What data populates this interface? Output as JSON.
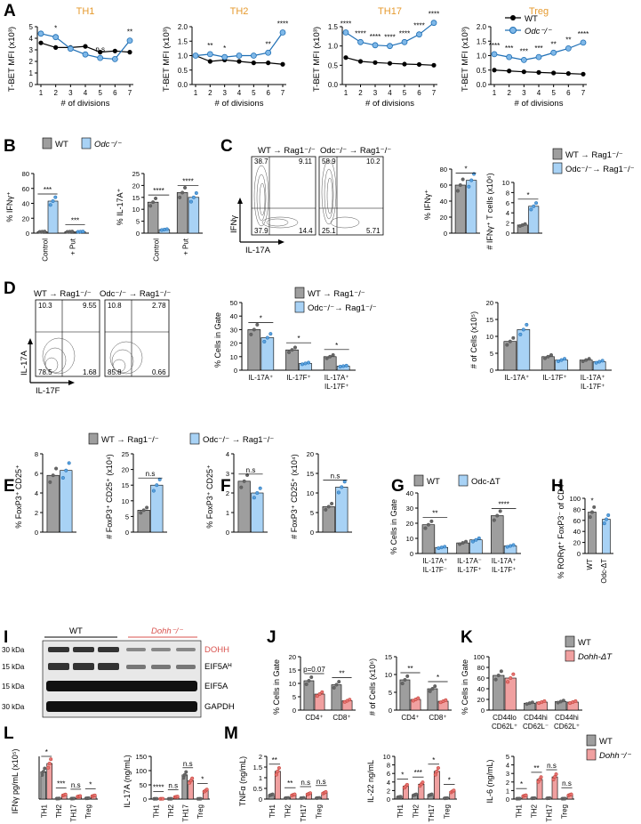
{
  "panels": {
    "A": {
      "letter": "A",
      "ylabel": "T-BET MFI (x10³)",
      "xlabel": "# of divisions",
      "legend": [
        "WT",
        "Odc⁻/⁻"
      ],
      "subpanels": [
        {
          "title": "TH1",
          "yticks": [
            "0",
            "1",
            "2",
            "3",
            "4",
            "5"
          ]
        },
        {
          "title": "TH2",
          "yticks": [
            "0.0",
            "0.5",
            "1.0",
            "1.5",
            "2.0"
          ]
        },
        {
          "title": "TH17",
          "yticks": [
            "0.0",
            "0.5",
            "1.0",
            "1.5"
          ]
        },
        {
          "title": "Treg",
          "yticks": [
            "0.0",
            "0.5",
            "1.0",
            "1.5",
            "2.0"
          ]
        }
      ]
    },
    "B": {
      "letter": "B",
      "legend": [
        "WT",
        "Odc⁻/⁻"
      ],
      "ylabels": [
        "% IFNγ⁺",
        "% IL-17A⁺"
      ],
      "groups": [
        "Control",
        "+ Put"
      ]
    },
    "C": {
      "letter": "C",
      "legend": [
        "WT → Rag1⁻/⁻",
        "Odc⁻/⁻→ Rag1⁻/⁻"
      ],
      "flow_titles": [
        "WT → Rag1⁻/⁻",
        "Odc⁻/⁻ → Rag1⁻/⁻"
      ],
      "quadrants": [
        [
          "38.7",
          "9.11",
          "37.9",
          "14.4"
        ],
        [
          "58.9",
          "10.2",
          "25.1",
          "5.71"
        ]
      ],
      "axes": [
        "IFNγ",
        "IL-17A"
      ],
      "ylabels": [
        "% IFNγ⁺",
        "# IFNγ⁺ T cells (x10⁶)"
      ]
    },
    "D": {
      "letter": "D",
      "legend": [
        "WT → Rag1⁻/⁻",
        "Odc⁻/⁻→ Rag1⁻/⁻"
      ],
      "flow_titles": [
        "WT → Rag1⁻/⁻",
        "Odc⁻/⁻ → Rag1⁻/⁻"
      ],
      "quadrants": [
        [
          "10.3",
          "9.55",
          "78.5",
          "1.68"
        ],
        [
          "10.8",
          "2.78",
          "85.8",
          "0.66"
        ]
      ],
      "axes": [
        "IL-17A",
        "IL-17F"
      ],
      "ylabels": [
        "% Cells in Gate",
        "# of Cells (x10⁵)"
      ],
      "cats": [
        "IL-17A⁺",
        "IL-17F⁺",
        "IL-17A⁺ IL-17F⁺"
      ]
    },
    "EF_legend": [
      "WT → Rag1⁻/⁻",
      "Odc⁻/⁻ → Rag1⁻/⁻"
    ],
    "E": {
      "letter": "E",
      "ylabels": [
        "% FoxP3⁺ CD25⁺",
        "# FoxP3⁺ CD25⁺ (x10⁴)"
      ]
    },
    "F": {
      "letter": "F",
      "ylabels": [
        "% FoxP3⁺ CD25⁺",
        "# FoxP3⁺ CD25⁺ (x10⁴)"
      ]
    },
    "G": {
      "letter": "G",
      "legend": [
        "WT",
        "Odc-ΔT"
      ],
      "ylabel": "% Cells in Gate"
    },
    "H": {
      "letter": "H",
      "ylabel": "% RORγt⁺ FoxP3⁻ of CD4⁺",
      "cats": [
        "WT",
        "Odc-ΔT"
      ]
    },
    "I": {
      "letter": "I",
      "groups": [
        "WT",
        "Dohh⁻/⁻"
      ],
      "kda": [
        "30 kDa",
        "15 kDa",
        "15 kDa",
        "30 kDa"
      ],
      "bands": [
        "DOHH",
        "EIF5Aᴴ",
        "EIF5A",
        "GAPDH"
      ]
    },
    "J": {
      "letter": "J",
      "ylabels": [
        "% Cells in Gate",
        "# of Cells (x10⁶)"
      ],
      "cats": [
        "CD4⁺",
        "CD8⁺"
      ],
      "pval": "p=0.07"
    },
    "K": {
      "letter": "K",
      "legend": [
        "WT",
        "Dohh-ΔT"
      ],
      "ylabel": "% Cells in Gate"
    },
    "L": {
      "letter": "L",
      "ylabels": [
        "IFNγ pg/mL (x10⁵)",
        "IL-17A (ng/mL)"
      ]
    },
    "M": {
      "letter": "M",
      "legend": [
        "WT",
        "Dohh⁻/⁻"
      ],
      "ylabels": [
        "TNFα (ng/mL)",
        "IL-22 ng/mL",
        "IL-6 (ng/mL)"
      ]
    }
  },
  "chart_data": [
    {
      "panel": "A",
      "title": "TH1",
      "type": "line",
      "x": [
        1,
        2,
        3,
        4,
        5,
        6,
        7
      ],
      "ylim": [
        0,
        5
      ],
      "series": [
        {
          "name": "WT",
          "values": [
            3.6,
            3.2,
            3.2,
            3.3,
            2.8,
            2.9,
            2.8
          ]
        },
        {
          "name": "Odc⁻/⁻",
          "values": [
            4.4,
            4.1,
            3.1,
            2.6,
            2.3,
            2.2,
            3.8
          ]
        }
      ],
      "annotations": [
        "*",
        "n.s",
        "**"
      ]
    },
    {
      "panel": "A",
      "title": "TH2",
      "type": "line",
      "x": [
        1,
        2,
        3,
        4,
        5,
        6,
        7
      ],
      "ylim": [
        0,
        2
      ],
      "series": [
        {
          "name": "WT",
          "values": [
            1.0,
            0.8,
            0.85,
            0.8,
            0.75,
            0.75,
            0.7
          ]
        },
        {
          "name": "Odc⁻/⁻",
          "values": [
            1.0,
            1.05,
            0.95,
            1.0,
            1.0,
            1.1,
            1.8
          ]
        }
      ],
      "annotations": [
        "**",
        "*",
        "**",
        "****"
      ]
    },
    {
      "panel": "A",
      "title": "TH17",
      "type": "line",
      "x": [
        1,
        2,
        3,
        4,
        5,
        6,
        7
      ],
      "ylim": [
        0,
        1.5
      ],
      "series": [
        {
          "name": "WT",
          "values": [
            0.7,
            0.6,
            0.57,
            0.55,
            0.53,
            0.52,
            0.5
          ]
        },
        {
          "name": "Odc⁻/⁻",
          "values": [
            1.35,
            1.1,
            1.02,
            1.0,
            1.1,
            1.3,
            1.6
          ]
        }
      ],
      "annotations": [
        "****",
        "****",
        "****",
        "****",
        "****",
        "****",
        "****"
      ]
    },
    {
      "panel": "A",
      "title": "Treg",
      "type": "line",
      "x": [
        1,
        2,
        3,
        4,
        5,
        6,
        7
      ],
      "ylim": [
        0,
        2
      ],
      "series": [
        {
          "name": "WT",
          "values": [
            0.5,
            0.47,
            0.44,
            0.42,
            0.4,
            0.38,
            0.36
          ]
        },
        {
          "name": "Odc⁻/⁻",
          "values": [
            1.05,
            0.95,
            0.85,
            0.95,
            1.1,
            1.25,
            1.45
          ]
        }
      ],
      "annotations": [
        "****",
        "***",
        "***",
        "***",
        "**",
        "**",
        "****"
      ]
    },
    {
      "panel": "B",
      "type": "bar",
      "ylabel": "% IFNγ⁺",
      "categories": [
        "Control",
        "+ Put"
      ],
      "ylim": [
        0,
        80
      ],
      "yticks": [
        0,
        20,
        40,
        60,
        80
      ],
      "series": [
        {
          "name": "WT",
          "values": [
            2,
            2
          ]
        },
        {
          "name": "Odc⁻/⁻",
          "values": [
            43,
            2
          ]
        }
      ],
      "annotations": [
        "***",
        "***"
      ]
    },
    {
      "panel": "B",
      "type": "bar",
      "ylabel": "% IL-17A⁺",
      "categories": [
        "Control",
        "+ Put"
      ],
      "ylim": [
        0,
        25
      ],
      "yticks": [
        0,
        5,
        10,
        15,
        20,
        25
      ],
      "series": [
        {
          "name": "WT",
          "values": [
            13,
            17
          ]
        },
        {
          "name": "Odc⁻/⁻",
          "values": [
            1.5,
            15
          ]
        }
      ],
      "annotations": [
        "****",
        "****"
      ]
    },
    {
      "panel": "C",
      "type": "bar",
      "ylabel": "% IFNγ⁺",
      "categories": [
        ""
      ],
      "ylim": [
        0,
        80
      ],
      "yticks": [
        0,
        20,
        40,
        60,
        80
      ],
      "series": [
        {
          "name": "WT → Rag1⁻/⁻",
          "values": [
            60
          ]
        },
        {
          "name": "Odc⁻/⁻→ Rag1⁻/⁻",
          "values": [
            66
          ]
        }
      ],
      "annotations": [
        "*"
      ]
    },
    {
      "panel": "C",
      "type": "bar",
      "ylabel": "# IFNγ⁺ T cells (x10⁶)",
      "categories": [
        ""
      ],
      "ylim": [
        0,
        10
      ],
      "yticks": [
        0,
        2,
        4,
        6,
        8,
        10
      ],
      "series": [
        {
          "name": "WT → Rag1⁻/⁻",
          "values": [
            1.6
          ]
        },
        {
          "name": "Odc⁻/⁻→ Rag1⁻/⁻",
          "values": [
            5.3
          ]
        }
      ],
      "annotations": [
        "*"
      ]
    },
    {
      "panel": "D",
      "type": "bar",
      "ylabel": "% Cells in Gate",
      "categories": [
        "IL-17A⁺",
        "IL-17F⁺",
        "IL-17A⁺ IL-17F⁺"
      ],
      "ylim": [
        0,
        50
      ],
      "yticks": [
        0,
        10,
        20,
        30,
        40,
        50
      ],
      "series": [
        {
          "name": "WT → Rag1⁻/⁻",
          "values": [
            30,
            15,
            10
          ]
        },
        {
          "name": "Odc⁻/⁻→ Rag1⁻/⁻",
          "values": [
            24,
            5,
            3
          ]
        }
      ],
      "annotations": [
        "*",
        "*",
        "*"
      ]
    },
    {
      "panel": "D",
      "type": "bar",
      "ylabel": "# of Cells (x10⁵)",
      "categories": [
        "IL-17A⁺",
        "IL-17F⁺",
        "IL-17A⁺ IL-17F⁺"
      ],
      "ylim": [
        0,
        20
      ],
      "yticks": [
        0,
        5,
        10,
        15,
        20
      ],
      "series": [
        {
          "name": "WT → Rag1⁻/⁻",
          "values": [
            8.5,
            4,
            3
          ]
        },
        {
          "name": "Odc⁻/⁻→ Rag1⁻/⁻",
          "values": [
            12,
            3,
            2.5
          ]
        }
      ]
    },
    {
      "panel": "E",
      "type": "bar",
      "ylabel": "% FoxP3⁺ CD25⁺",
      "ylim": [
        0,
        8
      ],
      "yticks": [
        0,
        2,
        4,
        6,
        8
      ],
      "series": [
        {
          "name": "WT → Rag1⁻/⁻",
          "values": [
            5.8
          ]
        },
        {
          "name": "Odc⁻/⁻ → Rag1⁻/⁻",
          "values": [
            6.3
          ]
        }
      ]
    },
    {
      "panel": "E",
      "type": "bar",
      "ylabel": "# FoxP3⁺ CD25⁺ (x10⁴)",
      "ylim": [
        0,
        25
      ],
      "yticks": [
        0,
        5,
        10,
        15,
        20,
        25
      ],
      "series": [
        {
          "name": "WT → Rag1⁻/⁻",
          "values": [
            7
          ]
        },
        {
          "name": "Odc⁻/⁻ → Rag1⁻/⁻",
          "values": [
            15
          ]
        }
      ],
      "annotations": [
        "n.s"
      ]
    },
    {
      "panel": "F",
      "type": "bar",
      "ylabel": "% FoxP3⁺ CD25⁺",
      "ylim": [
        0,
        4
      ],
      "yticks": [
        0,
        1,
        2,
        3,
        4
      ],
      "series": [
        {
          "name": "WT → Rag1⁻/⁻",
          "values": [
            2.6
          ]
        },
        {
          "name": "Odc⁻/⁻ → Rag1⁻/⁻",
          "values": [
            2.0
          ]
        }
      ],
      "annotations": [
        "n.s"
      ]
    },
    {
      "panel": "F",
      "type": "bar",
      "ylabel": "# FoxP3⁺ CD25⁺ (x10⁴)",
      "ylim": [
        0,
        20
      ],
      "yticks": [
        0,
        5,
        10,
        15,
        20
      ],
      "series": [
        {
          "name": "WT → Rag1⁻/⁻",
          "values": [
            6.5
          ]
        },
        {
          "name": "Odc⁻/⁻ → Rag1⁻/⁻",
          "values": [
            11.5
          ]
        }
      ],
      "annotations": [
        "n.s"
      ]
    },
    {
      "panel": "G",
      "type": "bar",
      "ylabel": "% Cells in Gate",
      "categories": [
        "IL-17A⁺ IL-17F⁻",
        "IL-17A⁻ IL-17F⁺",
        "IL-17A⁺ IL-17F⁺"
      ],
      "ylim": [
        0,
        40
      ],
      "yticks": [
        0,
        10,
        20,
        30,
        40
      ],
      "series": [
        {
          "name": "WT",
          "values": [
            19,
            7,
            25
          ]
        },
        {
          "name": "Odc-ΔT",
          "values": [
            4,
            9,
            5
          ]
        }
      ],
      "annotations": [
        "**",
        "",
        "****"
      ]
    },
    {
      "panel": "H",
      "type": "bar",
      "ylabel": "% RORγt⁺ FoxP3⁻ of CD4⁺",
      "categories": [
        "WT",
        "Odc-ΔT"
      ],
      "ylim": [
        0,
        100
      ],
      "yticks": [
        0,
        20,
        40,
        60,
        80,
        100
      ],
      "values": [
        75,
        62
      ],
      "annotations": [
        "*"
      ]
    },
    {
      "panel": "J",
      "type": "bar",
      "ylabel": "% Cells in Gate",
      "categories": [
        "CD4⁺",
        "CD8⁺"
      ],
      "ylim": [
        0,
        20
      ],
      "yticks": [
        0,
        5,
        10,
        15,
        20
      ],
      "series": [
        {
          "name": "WT",
          "values": [
            11,
            9.5
          ]
        },
        {
          "name": "Dohh-ΔT",
          "values": [
            6,
            3.5
          ]
        }
      ],
      "annotations": [
        "p=0.07",
        "**"
      ]
    },
    {
      "panel": "J",
      "type": "bar",
      "ylabel": "# of Cells (x10⁶)",
      "categories": [
        "CD4⁺",
        "CD8⁺"
      ],
      "ylim": [
        0,
        15
      ],
      "yticks": [
        0,
        5,
        10,
        15
      ],
      "series": [
        {
          "name": "WT",
          "values": [
            8.5,
            6
          ]
        },
        {
          "name": "Dohh-ΔT",
          "values": [
            3,
            2.5
          ]
        }
      ],
      "annotations": [
        "**",
        "*"
      ]
    },
    {
      "panel": "K",
      "type": "bar",
      "ylabel": "% Cells in Gate",
      "categories": [
        "CD44lo CD62L⁺",
        "CD44hi CD62L⁻",
        "CD44hi CD62L⁺"
      ],
      "ylim": [
        0,
        100
      ],
      "yticks": [
        0,
        20,
        40,
        60,
        80,
        100
      ],
      "series": [
        {
          "name": "WT",
          "values": [
            65,
            13,
            16
          ]
        },
        {
          "name": "Dohh-ΔT",
          "values": [
            60,
            15,
            15
          ]
        }
      ]
    },
    {
      "panel": "L",
      "type": "bar",
      "ylabel": "IFNγ pg/mL (x10⁵)",
      "categories": [
        "TH1",
        "TH2",
        "TH17",
        "Treg"
      ],
      "series": [
        {
          "name": "WT",
          "values": [
            1.0,
            0.02,
            0.02,
            0.03
          ]
        },
        {
          "name": "Dohh⁻/⁻",
          "values": [
            1.3,
            0.15,
            0.1,
            0.12
          ]
        }
      ],
      "annotations": [
        "*",
        "***",
        "n.s",
        "*"
      ]
    },
    {
      "panel": "L",
      "type": "bar",
      "ylabel": "IL-17A (ng/mL)",
      "categories": [
        "TH1",
        "TH2",
        "TH17",
        "Treg"
      ],
      "ylim": [
        0,
        150
      ],
      "yticks": [
        0,
        50,
        100,
        150
      ],
      "series": [
        {
          "name": "WT",
          "values": [
            1,
            1,
            85,
            1
          ]
        },
        {
          "name": "Dohh⁻/⁻",
          "values": [
            1,
            8,
            65,
            30
          ]
        }
      ],
      "annotations": [
        "****",
        "n.s",
        "n.s",
        "*"
      ]
    },
    {
      "panel": "M",
      "type": "bar",
      "ylabel": "TNFα (ng/mL)",
      "categories": [
        "TH1",
        "TH2",
        "TH17",
        "Treg"
      ],
      "ylim": [
        0,
        2.0
      ],
      "yticks": [
        0.0,
        0.5,
        1.0,
        1.5,
        2.0
      ],
      "series": [
        {
          "name": "WT",
          "values": [
            0.2,
            0.05,
            0.05,
            0.05
          ]
        },
        {
          "name": "Dohh⁻/⁻",
          "values": [
            1.3,
            0.2,
            0.25,
            0.3
          ]
        }
      ],
      "annotations": [
        "**",
        "**",
        "n.s",
        "n.s"
      ]
    },
    {
      "panel": "M",
      "type": "bar",
      "ylabel": "IL-22 ng/mL",
      "categories": [
        "TH1",
        "TH2",
        "TH17",
        "Treg"
      ],
      "ylim": [
        0,
        10
      ],
      "yticks": [
        0,
        2,
        4,
        6,
        8,
        10
      ],
      "series": [
        {
          "name": "WT",
          "values": [
            0.5,
            1.0,
            1.0,
            0.2
          ]
        },
        {
          "name": "Dohh⁻/⁻",
          "values": [
            3.0,
            3.5,
            6.5,
            1.8
          ]
        }
      ],
      "annotations": [
        "*",
        "***",
        "*",
        "*"
      ]
    },
    {
      "panel": "M",
      "type": "bar",
      "ylabel": "IL-6 (ng/mL)",
      "categories": [
        "TH1",
        "TH2",
        "TH17",
        "Treg"
      ],
      "ylim": [
        0,
        5
      ],
      "yticks": [
        0,
        1,
        2,
        3,
        4,
        5
      ],
      "series": [
        {
          "name": "WT",
          "values": [
            0.05,
            0.1,
            0.1,
            0.05
          ]
        },
        {
          "name": "Dohh⁻/⁻",
          "values": [
            0.4,
            2.3,
            2.6,
            0.5
          ]
        }
      ],
      "annotations": [
        "*",
        "**",
        "n.s",
        "n.s"
      ]
    }
  ]
}
